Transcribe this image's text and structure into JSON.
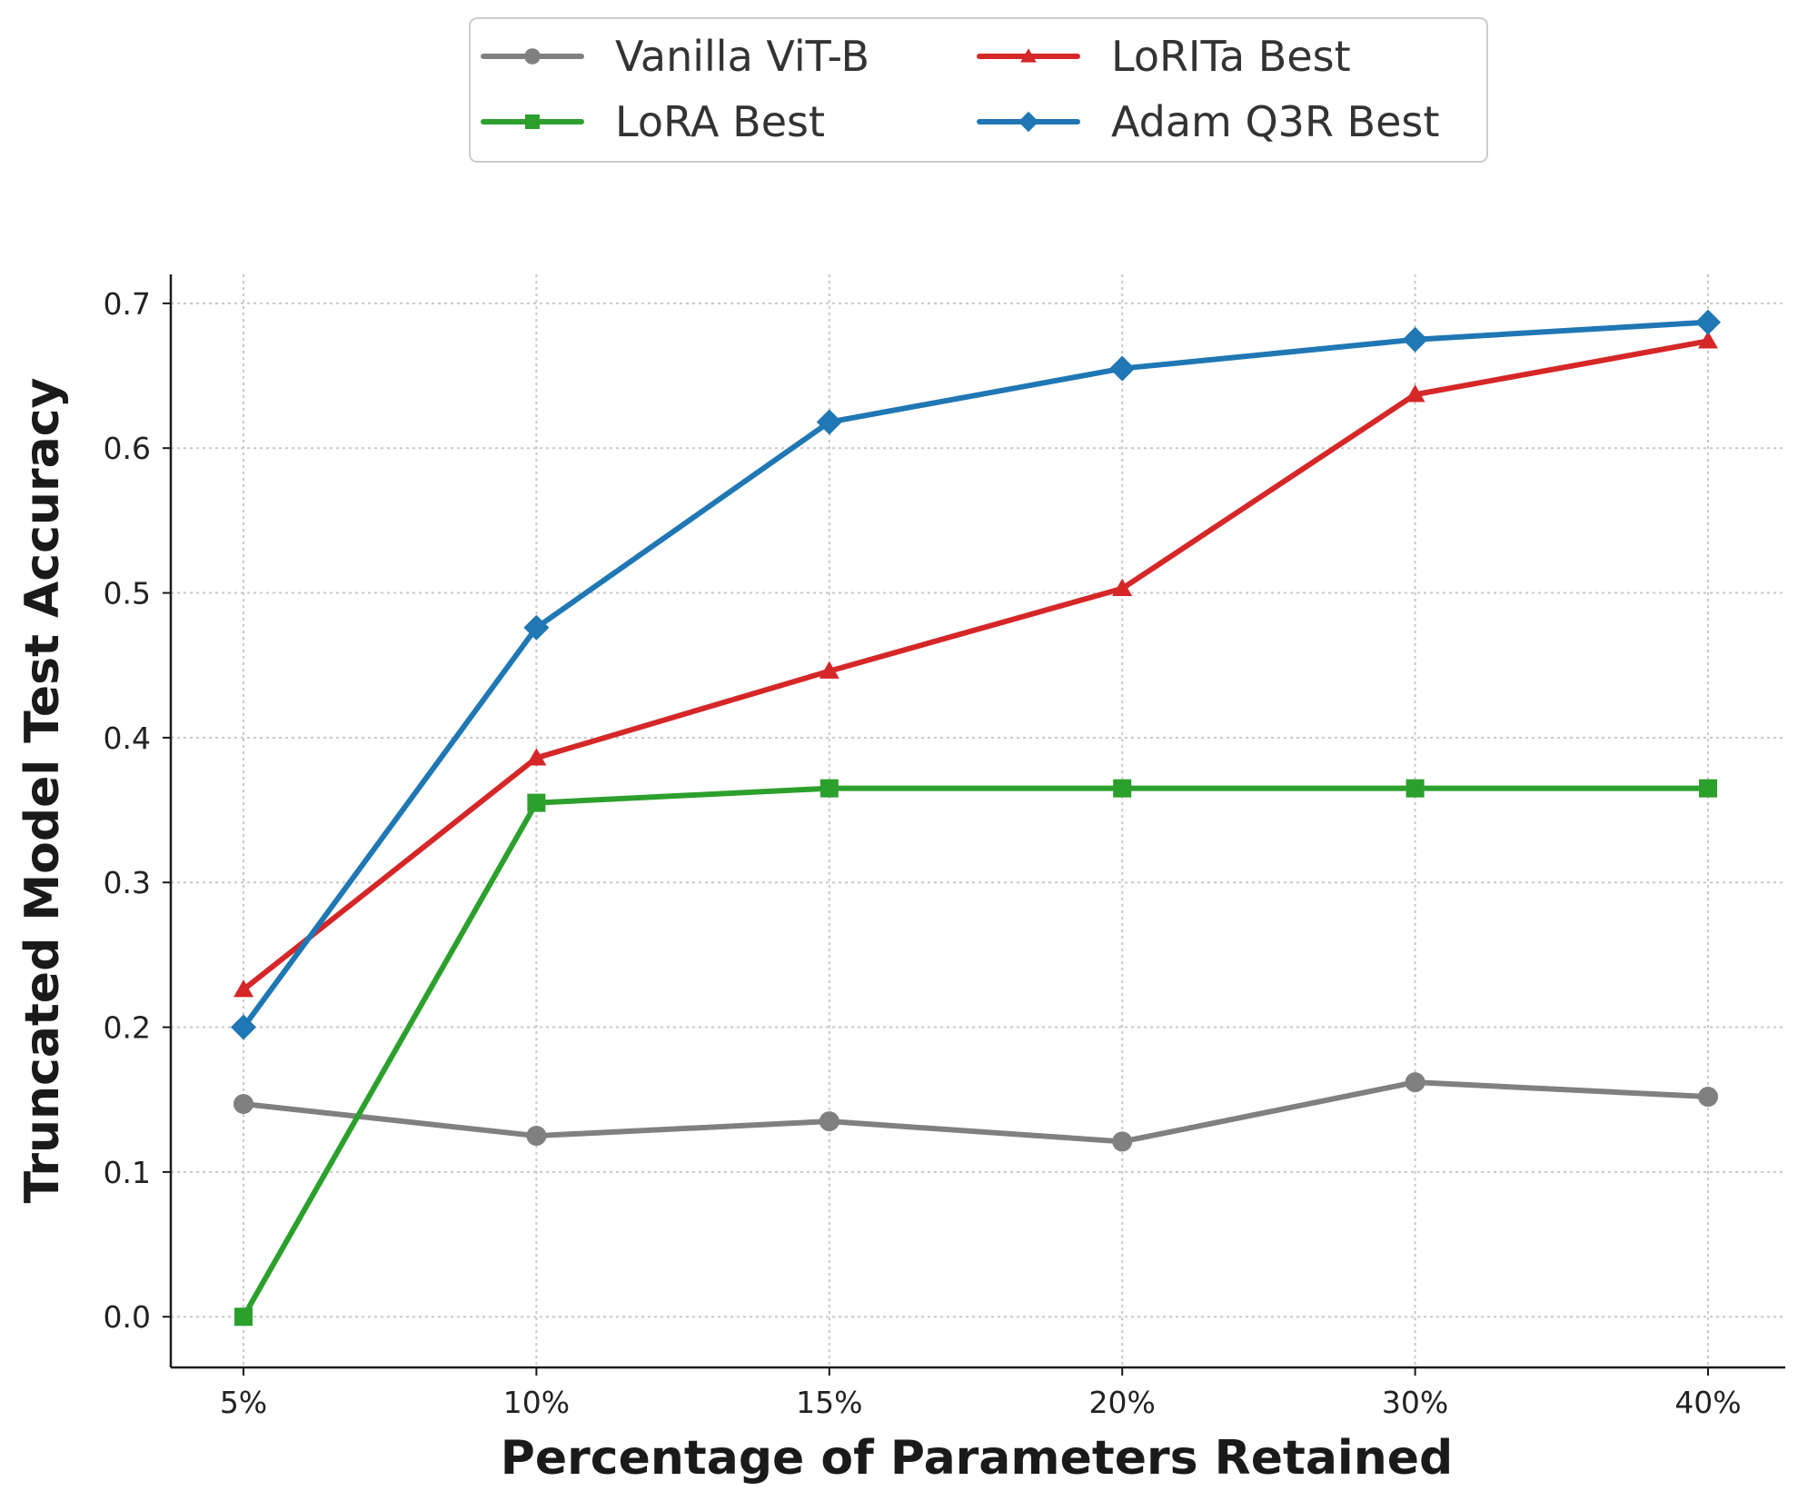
{
  "chart_data": {
    "type": "line",
    "title": "",
    "xlabel": "Percentage of Parameters Retained",
    "ylabel": "Truncated Model Test Accuracy",
    "categories": [
      "5%",
      "10%",
      "15%",
      "20%",
      "30%",
      "40%"
    ],
    "ylim": [
      -0.035,
      0.72
    ],
    "yticks": [
      0.0,
      0.1,
      0.2,
      0.3,
      0.4,
      0.5,
      0.6,
      0.7
    ],
    "ytick_labels": [
      "0.0",
      "0.1",
      "0.2",
      "0.3",
      "0.4",
      "0.5",
      "0.6",
      "0.7"
    ],
    "grid": true,
    "legend_position": "top-center",
    "series": [
      {
        "id": "vanilla",
        "name": "Vanilla ViT-B",
        "color": "#808080",
        "marker": "circle",
        "values": [
          0.147,
          0.125,
          0.135,
          0.121,
          0.162,
          0.152
        ]
      },
      {
        "id": "lora",
        "name": "LoRA Best",
        "color": "#2ca02c",
        "marker": "square",
        "values": [
          0.0,
          0.355,
          0.365,
          0.365,
          0.365,
          0.365
        ]
      },
      {
        "id": "lorita",
        "name": "LoRITa Best",
        "color": "#d62728",
        "marker": "triangle",
        "values": [
          0.226,
          0.386,
          0.446,
          0.503,
          0.637,
          0.674
        ]
      },
      {
        "id": "adamq3r",
        "name": "Adam Q3R Best",
        "color": "#1f77b4",
        "marker": "diamond",
        "values": [
          0.2,
          0.476,
          0.618,
          0.655,
          0.675,
          0.687
        ]
      }
    ]
  }
}
